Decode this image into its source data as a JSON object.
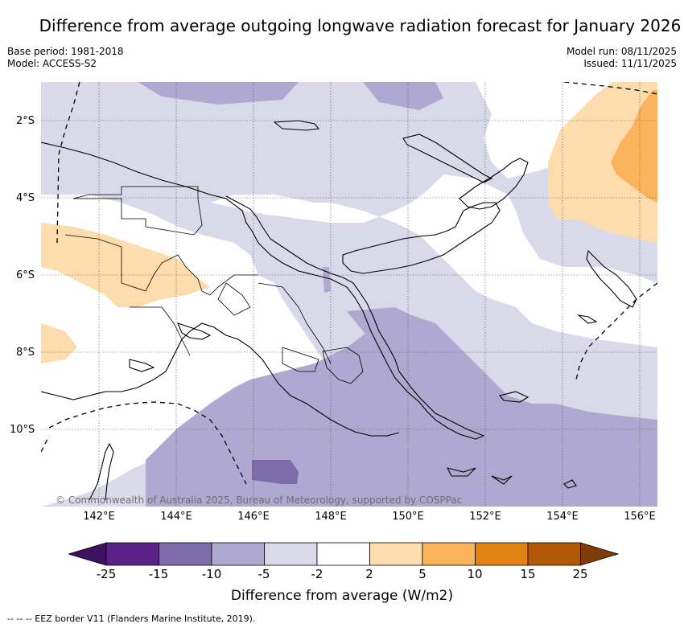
{
  "title": "Difference from average outgoing longwave radiation forecast for January 2026",
  "meta": {
    "base_period": "Base period: 1981-2018",
    "model": "Model: ACCESS-S2",
    "model_run": "Model run: 08/11/2025",
    "issued": "Issued: 11/11/2025"
  },
  "map": {
    "region": "Papua New Guinea and surrounding seas",
    "lat_labels": [
      "2°S",
      "4°S",
      "6°S",
      "8°S",
      "10°S"
    ],
    "lon_labels": [
      "142°E",
      "144°E",
      "146°E",
      "148°E",
      "150°E",
      "152°E",
      "154°E",
      "156°E"
    ],
    "copyright": "© Commonwealth of Australia 2025, Bureau of Meteorology, supported by COSPPac"
  },
  "colorbar": {
    "title": "Difference from average (W/m2)",
    "ticks": [
      "-25",
      "-15",
      "-10",
      "-5",
      "-2",
      "2",
      "5",
      "10",
      "15",
      "25"
    ],
    "colors": [
      "#3d1260",
      "#5a2286",
      "#7d6ca9",
      "#afa9d1",
      "#d9d9ea",
      "#ffffff",
      "#fddcad",
      "#fbb35c",
      "#e08214",
      "#b35806",
      "#7f3b08"
    ]
  },
  "footnote": "--  --  -- EEZ border V11 (Flanders Marine Institute, 2019)."
}
